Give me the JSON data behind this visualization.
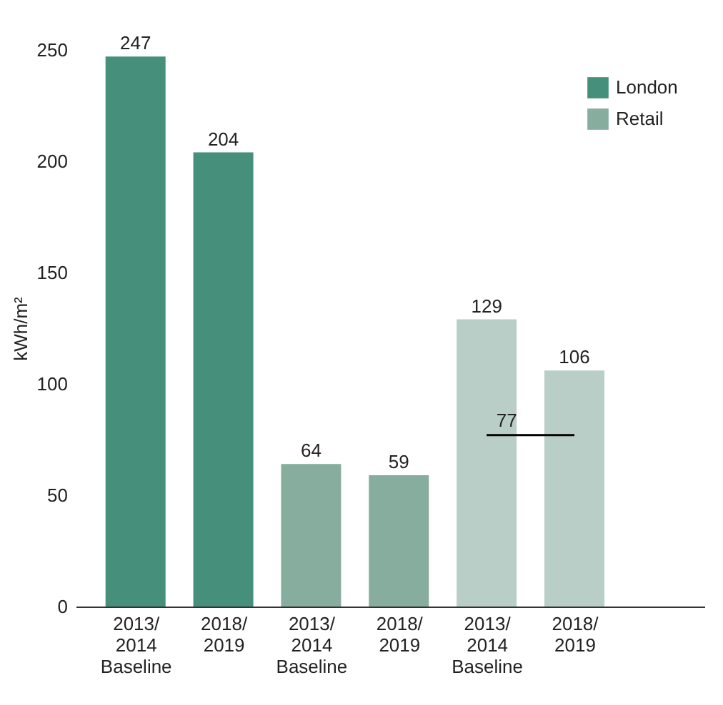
{
  "chart_data": {
    "type": "bar",
    "categories": [
      "2013/\n2014\nBaseline",
      "2018/\n2019",
      "2013/\n2014\nBaseline",
      "2018/\n2019",
      "2013/\n2014\nBaseline",
      "2018/\n2019"
    ],
    "series": [
      {
        "name": "London",
        "color": "#468f7a",
        "values": [
          247,
          204,
          null,
          null,
          null,
          null
        ],
        "value_labels": [
          "247",
          "204",
          null,
          null,
          null,
          null
        ]
      },
      {
        "name": "Retail",
        "color": "#86ad9e",
        "values": [
          null,
          null,
          64,
          59,
          null,
          null
        ],
        "value_labels": [
          null,
          null,
          "64",
          "59",
          null,
          null
        ]
      },
      {
        "color": "#b9cec6",
        "values": [
          null,
          null,
          null,
          null,
          129,
          106
        ],
        "value_labels": [
          null,
          null,
          null,
          null,
          "129",
          "106"
        ]
      },
      {
        "type": "line",
        "color": "#000000",
        "values": [
          null,
          null,
          null,
          null,
          77,
          77
        ],
        "value_labels": [
          null,
          null,
          null,
          null,
          "77",
          null
        ]
      }
    ],
    "ylabel": "kWh/m²",
    "ylim": [
      0,
      250
    ],
    "yticks": [
      0,
      50,
      100,
      150,
      200,
      250
    ],
    "grid": false,
    "legend": "top right"
  }
}
